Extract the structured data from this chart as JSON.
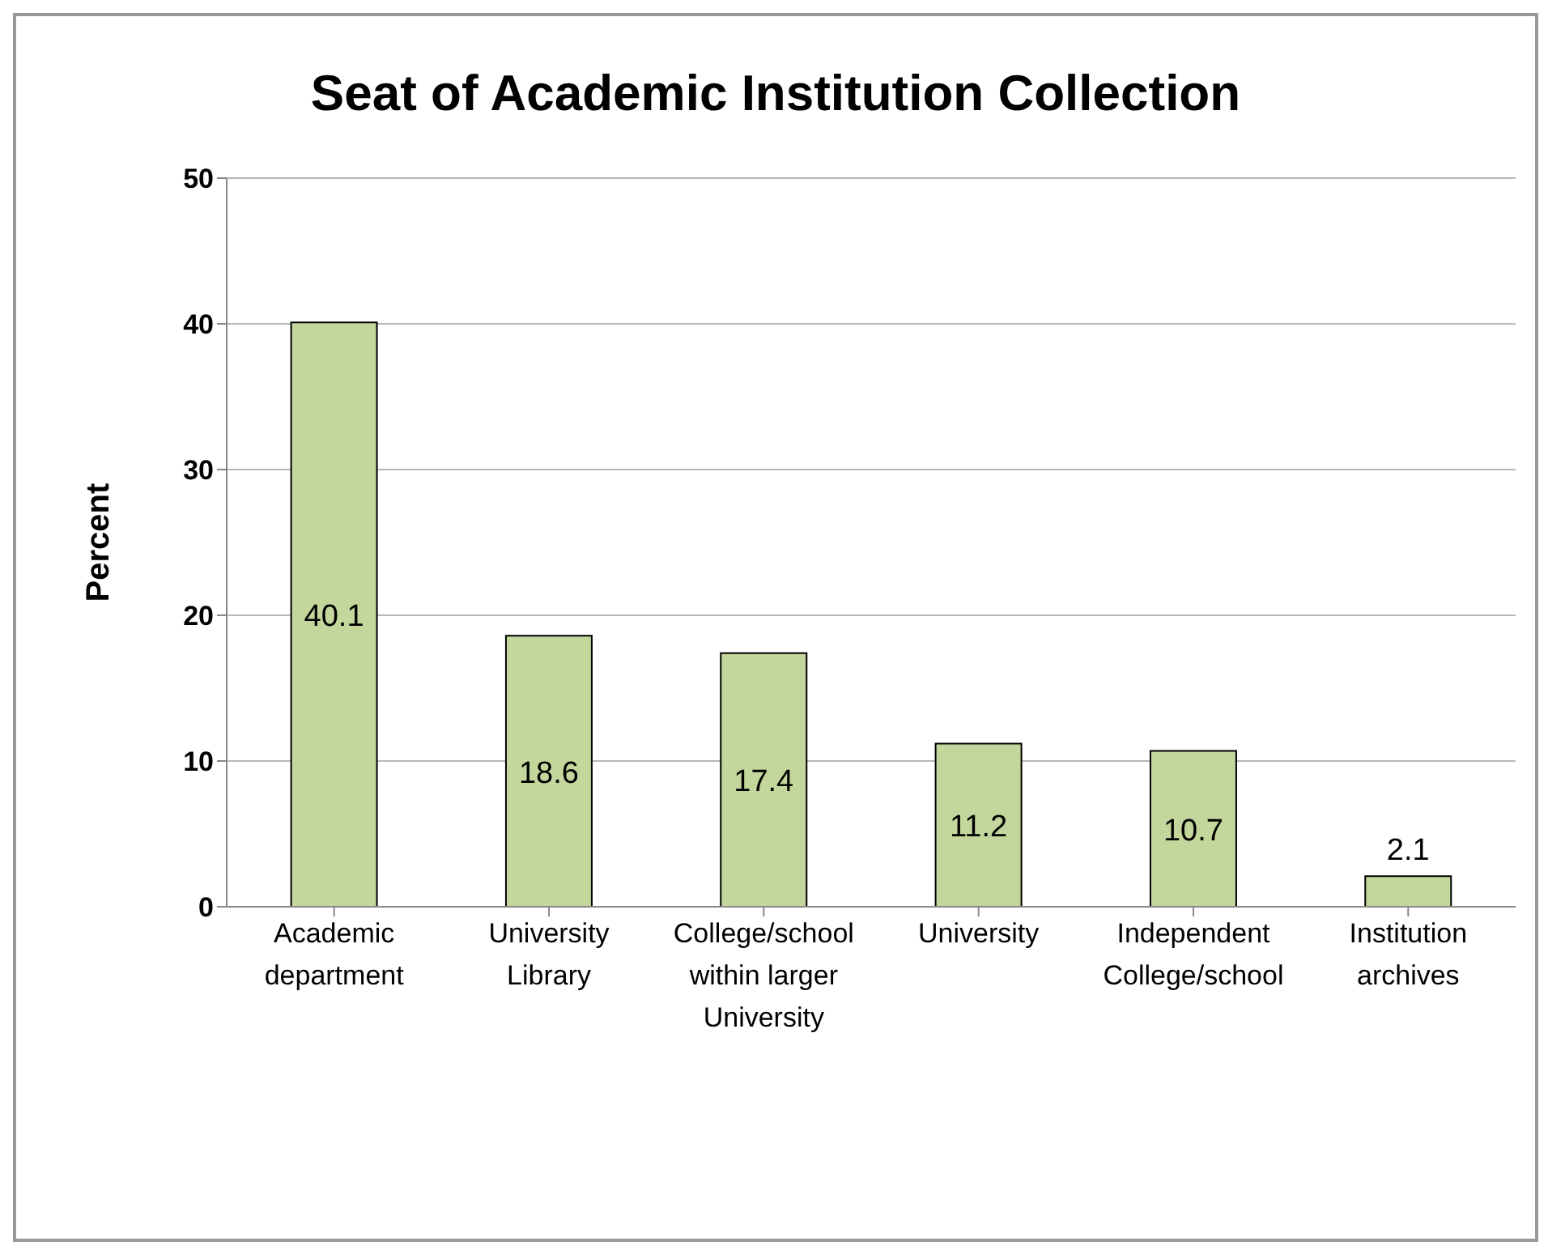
{
  "chart_data": {
    "type": "bar",
    "title": "Seat of Academic Institution Collection",
    "ylabel": "Percent",
    "categories": [
      "Academic department",
      "University Library",
      "College/school within larger University",
      "University",
      "Independent College/school",
      "Institution archives"
    ],
    "values": [
      40.1,
      18.6,
      17.4,
      11.2,
      10.7,
      2.1
    ],
    "color": "#c3d69b",
    "ylim": [
      0,
      50
    ],
    "yticks": [
      0,
      10,
      20,
      30,
      40,
      50
    ],
    "grid": "y",
    "data_labels": true,
    "legend": false
  }
}
